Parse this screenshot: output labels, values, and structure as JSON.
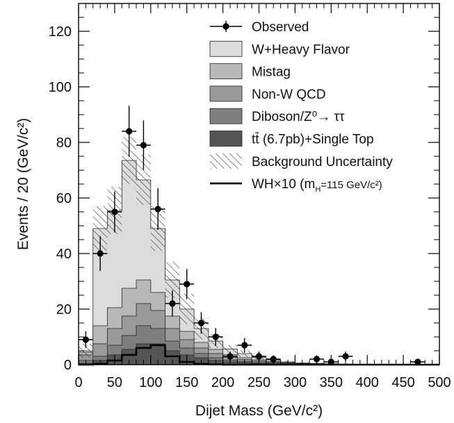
{
  "chart_data": {
    "type": "histogram",
    "xlabel": "Dijet Mass (GeV/c²)",
    "ylabel": "Events / 20 (GeV/c²)",
    "xlim": [
      0,
      500
    ],
    "ylim": [
      0,
      130
    ],
    "x_ticks": [
      0,
      50,
      100,
      150,
      200,
      250,
      300,
      350,
      400,
      450,
      500
    ],
    "y_ticks": [
      0,
      20,
      40,
      60,
      80,
      100,
      120
    ],
    "bin_width": 20,
    "bin_edges": [
      0,
      20,
      40,
      60,
      80,
      100,
      120,
      140,
      160,
      180,
      200,
      220,
      240,
      260,
      280,
      300,
      320,
      340,
      360,
      380,
      400,
      420,
      440,
      460,
      480,
      500
    ],
    "stack": [
      {
        "name": "tt̄ (6.7pb)+Single Top",
        "color": "#555555",
        "values": [
          0.5,
          1.5,
          3.5,
          5.5,
          7.5,
          7.5,
          5.0,
          3.5,
          2.5,
          1.5,
          1.0,
          0.7,
          0.4,
          0.3,
          0.2,
          0.1,
          0.1,
          0.1,
          0.05,
          0.05,
          0,
          0,
          0,
          0,
          0
        ]
      },
      {
        "name": "Diboson/Z⁰→ ττ",
        "color": "#7f7f7f",
        "values": [
          1.0,
          1.5,
          3.5,
          5.0,
          6.5,
          5.5,
          3.5,
          2.5,
          1.5,
          1.0,
          0.6,
          0.4,
          0.3,
          0.2,
          0.1,
          0.1,
          0.05,
          0.05,
          0,
          0,
          0,
          0,
          0,
          0,
          0
        ]
      },
      {
        "name": "Non-W QCD",
        "color": "#9a9a9a",
        "values": [
          2.0,
          4.5,
          6.0,
          7.0,
          8.0,
          6.5,
          4.5,
          3.0,
          2.0,
          1.5,
          1.0,
          0.7,
          0.5,
          0.3,
          0.2,
          0.1,
          0.1,
          0.05,
          0.05,
          0,
          0,
          0,
          0,
          0,
          0
        ]
      },
      {
        "name": "Mistag",
        "color": "#b8b8b8",
        "values": [
          1.0,
          6.5,
          7.5,
          10.0,
          8.5,
          6.5,
          4.5,
          3.0,
          2.0,
          1.5,
          1.0,
          0.7,
          0.5,
          0.3,
          0.2,
          0.1,
          0.1,
          0.05,
          0.05,
          0,
          0,
          0,
          0,
          0,
          0
        ]
      },
      {
        "name": "W+Heavy Flavor",
        "color": "#dcdcdc",
        "values": [
          0.5,
          35.0,
          35.0,
          46.0,
          36.0,
          23.0,
          13.0,
          8.0,
          5.0,
          3.0,
          2.0,
          1.5,
          1.0,
          0.6,
          0.3,
          0.2,
          0.1,
          0.1,
          0.05,
          0.05,
          0,
          0,
          0,
          0,
          0
        ]
      }
    ],
    "background_uncertainty": {
      "name": "Background Uncertainty",
      "values": [
        2.5,
        8.0,
        8.5,
        8.5,
        9.0,
        8.0,
        6.5,
        5.5,
        4.0,
        2.5,
        1.5,
        1.2,
        0.8,
        0.5,
        0.4,
        0.2,
        0.2,
        0.1,
        0.1,
        0.05,
        0,
        0,
        0,
        0,
        0
      ]
    },
    "signal": {
      "name": "WH×10 (m_H=115 GeV/c²)",
      "values": [
        0,
        0.3,
        1.5,
        3.5,
        6.0,
        7.0,
        3.0,
        1.0,
        0.3,
        0.1,
        0,
        0,
        0,
        0,
        0,
        0,
        0,
        0,
        0,
        0,
        0,
        0,
        0,
        0,
        0
      ]
    },
    "observed": {
      "name": "Observed",
      "points": [
        {
          "x": 10,
          "y": 9,
          "err": 3.0
        },
        {
          "x": 30,
          "y": 40,
          "err": 6.3
        },
        {
          "x": 50,
          "y": 55,
          "err": 7.4
        },
        {
          "x": 70,
          "y": 84,
          "err": 9.2
        },
        {
          "x": 90,
          "y": 79,
          "err": 8.9
        },
        {
          "x": 110,
          "y": 56,
          "err": 7.5
        },
        {
          "x": 130,
          "y": 22,
          "err": 4.7
        },
        {
          "x": 150,
          "y": 29,
          "err": 5.4
        },
        {
          "x": 170,
          "y": 15,
          "err": 3.9
        },
        {
          "x": 190,
          "y": 10,
          "err": 3.2
        },
        {
          "x": 210,
          "y": 3,
          "err": 1.7
        },
        {
          "x": 230,
          "y": 7,
          "err": 2.6
        },
        {
          "x": 250,
          "y": 3,
          "err": 1.7
        },
        {
          "x": 270,
          "y": 2,
          "err": 1.4
        },
        {
          "x": 330,
          "y": 2,
          "err": 1.4
        },
        {
          "x": 350,
          "y": 1,
          "err": 1.0
        },
        {
          "x": 370,
          "y": 3,
          "err": 1.7
        },
        {
          "x": 470,
          "y": 1,
          "err": 1.0
        }
      ]
    },
    "legend_position": "top-right",
    "legend": [
      {
        "key": "observed",
        "label": "Observed",
        "style": "marker"
      },
      {
        "key": "whf",
        "label": "W+Heavy Flavor",
        "style": "box",
        "color": "#dcdcdc"
      },
      {
        "key": "mistag",
        "label": "Mistag",
        "style": "box",
        "color": "#b8b8b8"
      },
      {
        "key": "nonw",
        "label": "Non-W QCD",
        "style": "box",
        "color": "#9a9a9a"
      },
      {
        "key": "diboson",
        "label": "Diboson/Z⁰→ ττ",
        "style": "box",
        "color": "#7f7f7f"
      },
      {
        "key": "top",
        "label": "tt̄ (6.7pb)+Single Top",
        "style": "box",
        "color": "#555555"
      },
      {
        "key": "unc",
        "label": "Background Uncertainty",
        "style": "hatch"
      },
      {
        "key": "signal",
        "label": "WH×10 (m",
        "sub": "H",
        "tail": "=115 GeV/c²)",
        "style": "line"
      }
    ]
  }
}
